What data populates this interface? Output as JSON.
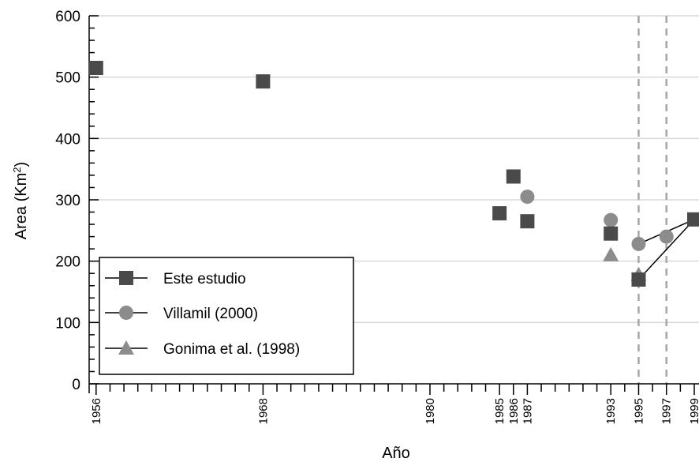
{
  "chart_data": {
    "type": "scatter",
    "xlabel": "Año",
    "ylabel": "Area (Km²)",
    "ylabel_base": "Area (Km",
    "ylabel_sup": "2",
    "ylabel_end": ")",
    "ylim": [
      0,
      600
    ],
    "xlim": [
      1955.5,
      1999
    ],
    "y_ticks": [
      0,
      100,
      200,
      300,
      400,
      500,
      600
    ],
    "x_ticks": [
      "1956",
      "1968",
      "1980",
      "1985",
      "1986",
      "1987",
      "1993",
      "1995",
      "1997",
      "1999"
    ],
    "x_tick_values": [
      1956,
      1968,
      1980,
      1985,
      1986,
      1987,
      1993,
      1995,
      1997,
      1999
    ],
    "grid": "horizontal",
    "vertical_dashed_lines": [
      1995,
      1997
    ],
    "legend_position": "bottom-left",
    "series": [
      {
        "name": "Este estudio",
        "marker": "square",
        "color": "#4a4a4a",
        "points": [
          {
            "x": 1956,
            "y": 515
          },
          {
            "x": 1968,
            "y": 493
          },
          {
            "x": 1985,
            "y": 278
          },
          {
            "x": 1986,
            "y": 338
          },
          {
            "x": 1987,
            "y": 265
          },
          {
            "x": 1993,
            "y": 245
          },
          {
            "x": 1995,
            "y": 170
          },
          {
            "x": 1999,
            "y": 268
          }
        ]
      },
      {
        "name": "Villamil (2000)",
        "marker": "circle",
        "color": "#8c8c8c",
        "points": [
          {
            "x": 1987,
            "y": 305
          },
          {
            "x": 1993,
            "y": 267
          },
          {
            "x": 1995,
            "y": 228
          },
          {
            "x": 1997,
            "y": 240
          }
        ]
      },
      {
        "name": "Gonima et al. (1998)",
        "marker": "triangle",
        "color": "#8c8c8c",
        "points": [
          {
            "x": 1993,
            "y": 210
          },
          {
            "x": 1995,
            "y": 178
          }
        ]
      }
    ],
    "connector_lines": [
      {
        "from": {
          "x": 1995,
          "y": 228
        },
        "to": {
          "x": 1999,
          "y": 268
        }
      },
      {
        "from": {
          "x": 1995,
          "y": 170
        },
        "to": {
          "x": 1999,
          "y": 268
        }
      }
    ]
  }
}
